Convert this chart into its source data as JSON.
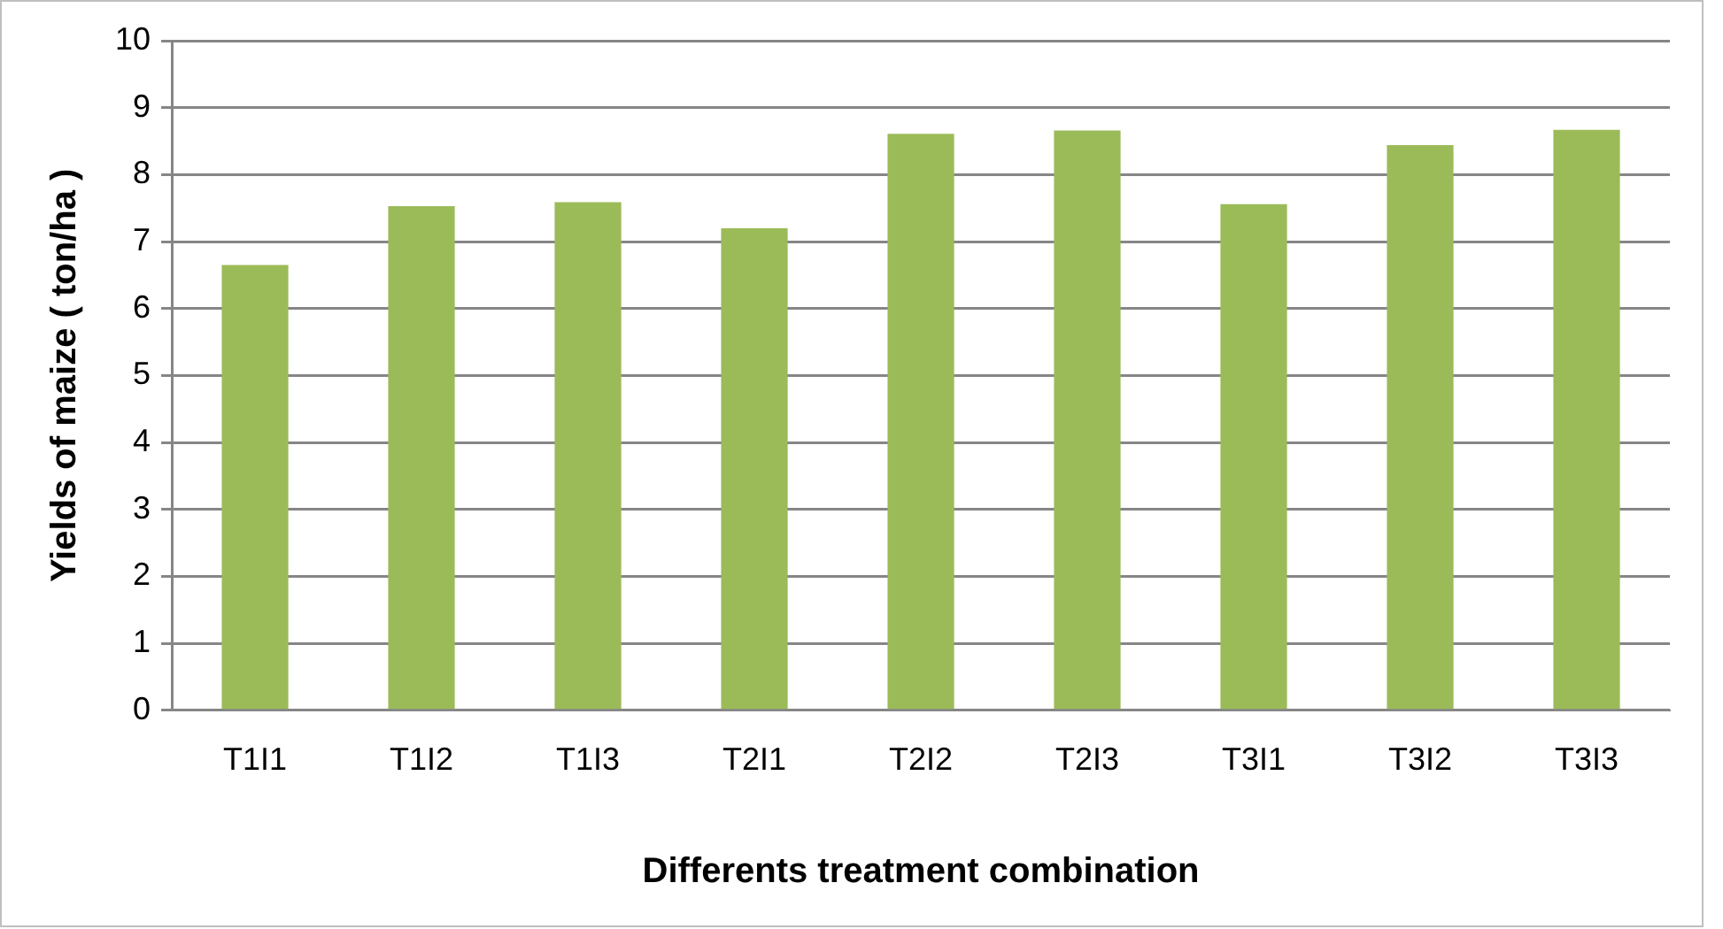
{
  "chart_data": {
    "type": "bar",
    "xlabel": "Differents treatment combination",
    "ylabel": "Yields of maize ( ton/ha )",
    "categories": [
      "T1I1",
      "T1I2",
      "T1I3",
      "T2I1",
      "T2I2",
      "T2I3",
      "T3I1",
      "T3I2",
      "T3I3"
    ],
    "values": [
      6.65,
      7.53,
      7.59,
      7.2,
      8.61,
      8.66,
      7.56,
      8.44,
      8.67
    ],
    "color": "#9bbb59",
    "ylim": [
      0,
      10
    ],
    "yticks": [
      0,
      1,
      2,
      3,
      4,
      5,
      6,
      7,
      8,
      9,
      10
    ],
    "grid": "y",
    "legend": false
  }
}
